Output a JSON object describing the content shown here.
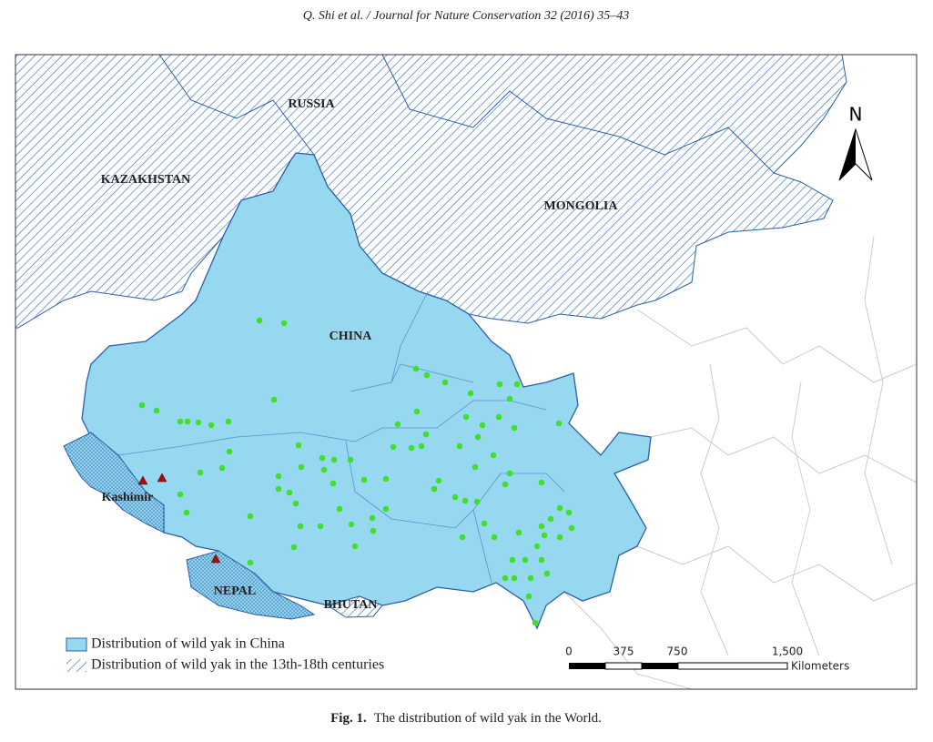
{
  "header": "Q. Shi et al. / Journal for Nature Conservation 32 (2016) 35–43",
  "map": {
    "labels": {
      "russia": "RUSSIA",
      "kazakhstan": "KAZAKHSTAN",
      "mongolia": "MONGOLIA",
      "china": "CHINA",
      "kashmir": "Kashimir",
      "nepal": "NEPAL",
      "bhutan": "BHUTAN"
    },
    "north": "N",
    "legend": [
      "Distribution of wild yak in China",
      "Distribution of wild yak in the 13th-18th centuries"
    ],
    "scale": {
      "ticks": [
        "0",
        "375",
        "750",
        "1,500"
      ],
      "unit": "Kilometers"
    }
  },
  "caption": {
    "label": "Fig. 1.",
    "text": "The distribution of wild yak in the World."
  }
}
